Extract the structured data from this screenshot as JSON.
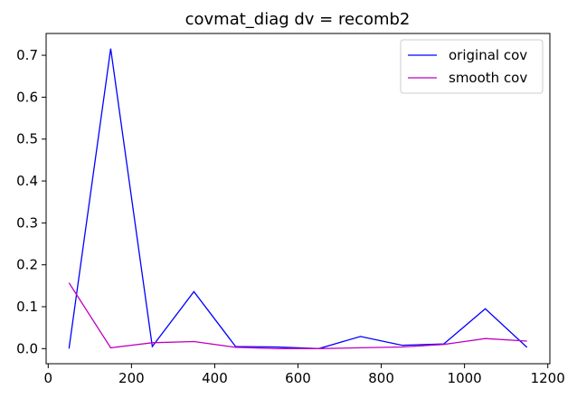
{
  "chart_data": {
    "type": "line",
    "title": "covmat_diag dv = recomb2",
    "xlabel": "",
    "ylabel": "",
    "xlim": [
      -5,
      1205
    ],
    "ylim": [
      -0.036,
      0.752
    ],
    "x_ticks": [
      0,
      200,
      400,
      600,
      800,
      1000,
      1200
    ],
    "y_ticks": [
      0.0,
      0.1,
      0.2,
      0.3,
      0.4,
      0.5,
      0.6,
      0.7
    ],
    "x_tick_labels": [
      "0",
      "200",
      "400",
      "600",
      "800",
      "1000",
      "1200"
    ],
    "y_tick_labels": [
      "0.0",
      "0.1",
      "0.2",
      "0.3",
      "0.4",
      "0.5",
      "0.6",
      "0.7"
    ],
    "x": [
      50,
      150,
      250,
      350,
      450,
      550,
      650,
      750,
      850,
      950,
      1050,
      1150
    ],
    "series": [
      {
        "name": "original cov",
        "color": "#0000ff",
        "values": [
          0.0,
          0.716,
          0.005,
          0.136,
          0.005,
          0.004,
          0.0,
          0.029,
          0.008,
          0.011,
          0.095,
          0.003
        ]
      },
      {
        "name": "smooth cov",
        "color": "#bf00bf",
        "values": [
          0.157,
          0.002,
          0.014,
          0.017,
          0.003,
          0.0,
          0.0,
          0.002,
          0.004,
          0.01,
          0.024,
          0.018
        ]
      }
    ],
    "grid": false,
    "legend_position": "top-right"
  }
}
